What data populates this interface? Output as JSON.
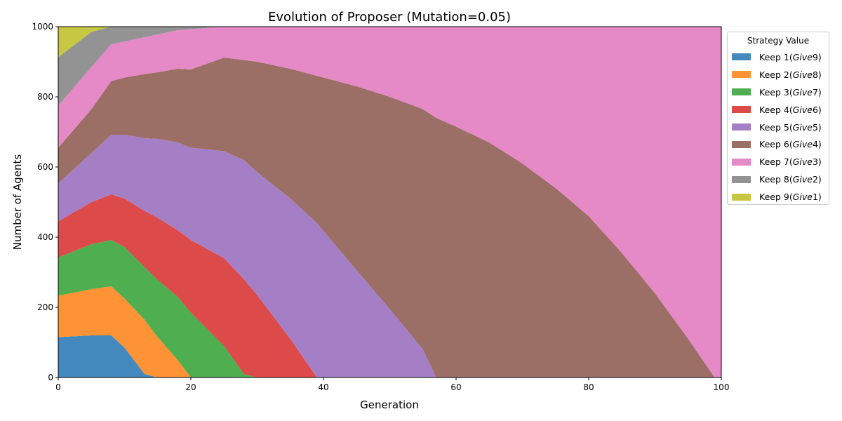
{
  "chart_data": {
    "type": "area",
    "stacked": true,
    "title": "Evolution of Proposer (Mutation=0.05)",
    "xlabel": "Generation",
    "ylabel": "Number of Agents",
    "xlim": [
      0,
      100
    ],
    "ylim": [
      0,
      1000
    ],
    "xticks": [
      0,
      20,
      40,
      60,
      80,
      100
    ],
    "yticks": [
      0,
      200,
      400,
      600,
      800,
      1000
    ],
    "grid": false,
    "legend_title": "Strategy Value",
    "legend_position": "outside right, upper",
    "x": [
      0,
      5,
      8,
      10,
      13,
      15,
      18,
      20,
      25,
      28,
      30,
      35,
      39,
      45,
      50,
      55,
      57,
      60,
      65,
      70,
      75,
      80,
      85,
      90,
      95,
      99,
      100
    ],
    "series": [
      {
        "name": "Keep 1(Give9)",
        "keep": "Keep 1",
        "give": "Give9",
        "color": "#4389be",
        "values": [
          115,
          120,
          120,
          85,
          10,
          0,
          0,
          0,
          0,
          0,
          0,
          0,
          0,
          0,
          0,
          0,
          0,
          0,
          0,
          0,
          0,
          0,
          0,
          0,
          0,
          0,
          0
        ]
      },
      {
        "name": "Keep 2(Give8)",
        "keep": "Keep 2",
        "give": "Give8",
        "color": "#fd9335",
        "values": [
          118,
          132,
          140,
          140,
          155,
          115,
          50,
          0,
          0,
          0,
          0,
          0,
          0,
          0,
          0,
          0,
          0,
          0,
          0,
          0,
          0,
          0,
          0,
          0,
          0,
          0,
          0
        ]
      },
      {
        "name": "Keep 3(Give7)",
        "keep": "Keep 3",
        "give": "Give7",
        "color": "#4fae4f",
        "values": [
          109,
          128,
          132,
          147,
          150,
          163,
          180,
          185,
          90,
          10,
          0,
          0,
          0,
          0,
          0,
          0,
          0,
          0,
          0,
          0,
          0,
          0,
          0,
          0,
          0,
          0,
          0
        ]
      },
      {
        "name": "Keep 4(Give6)",
        "keep": "Keep 4",
        "give": "Give6",
        "color": "#dc4a4a",
        "values": [
          103,
          120,
          130,
          138,
          160,
          177,
          190,
          207,
          250,
          270,
          235,
          110,
          0,
          0,
          0,
          0,
          0,
          0,
          0,
          0,
          0,
          0,
          0,
          0,
          0,
          0,
          0
        ]
      },
      {
        "name": "Keep 5(Give5)",
        "keep": "Keep 5",
        "give": "Give5",
        "color": "#a57fc6",
        "values": [
          108,
          140,
          170,
          182,
          207,
          225,
          250,
          263,
          305,
          340,
          350,
          400,
          440,
          305,
          195,
          80,
          0,
          0,
          0,
          0,
          0,
          0,
          0,
          0,
          0,
          0,
          0
        ]
      },
      {
        "name": "Keep 6(Give4)",
        "keep": "Keep 6",
        "give": "Give4",
        "color": "#9c6f66",
        "values": [
          102,
          125,
          153,
          163,
          183,
          190,
          210,
          223,
          267,
          285,
          315,
          370,
          420,
          525,
          605,
          685,
          740,
          715,
          670,
          610,
          540,
          460,
          355,
          240,
          110,
          0,
          0
        ]
      },
      {
        "name": "Keep 7(Give3)",
        "keep": "Keep 7",
        "give": "Give3",
        "color": "#e589c7",
        "values": [
          120,
          120,
          105,
          103,
          105,
          108,
          110,
          115,
          88,
          95,
          100,
          120,
          140,
          170,
          200,
          235,
          260,
          285,
          330,
          390,
          460,
          540,
          645,
          760,
          890,
          1000,
          1000
        ]
      },
      {
        "name": "Keep 8(Give2)",
        "keep": "Keep 8",
        "give": "Give2",
        "color": "#939393",
        "values": [
          138,
          100,
          50,
          42,
          30,
          22,
          10,
          7,
          0,
          0,
          0,
          0,
          0,
          0,
          0,
          0,
          0,
          0,
          0,
          0,
          0,
          0,
          0,
          0,
          0,
          0,
          0
        ]
      },
      {
        "name": "Keep 9(Give1)",
        "keep": "Keep 9",
        "give": "Give1",
        "color": "#c7c743",
        "values": [
          87,
          15,
          0,
          0,
          0,
          0,
          0,
          0,
          0,
          0,
          0,
          0,
          0,
          0,
          0,
          0,
          0,
          0,
          0,
          0,
          0,
          0,
          0,
          0,
          0,
          0,
          0
        ]
      }
    ]
  }
}
